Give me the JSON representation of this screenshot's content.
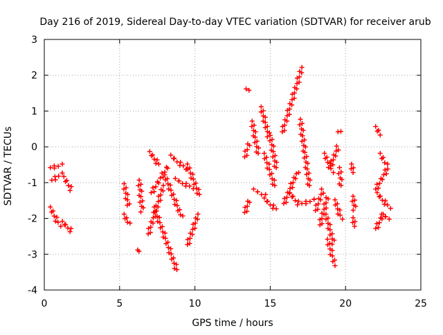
{
  "chart_data": {
    "type": "scatter",
    "title": "Day 216 of 2019, Sidereal Day-to-day VTEC variation (SDTVAR) for receiver arub",
    "xlabel": "GPS time / hours",
    "ylabel": "SDTVAR / TECUs",
    "xlim": [
      0,
      25
    ],
    "ylim": [
      -4,
      3
    ],
    "xticks": [
      0,
      5,
      10,
      15,
      20,
      25
    ],
    "yticks": [
      -4,
      -3,
      -2,
      -1,
      0,
      1,
      2,
      3
    ],
    "xtick_labels": [
      "0",
      "5",
      "10",
      "15",
      "20",
      "25"
    ],
    "ytick_labels": [
      "-4",
      "-3",
      "-2",
      "-1",
      "0",
      "1",
      "2",
      "3"
    ],
    "grid": true,
    "marker": "+",
    "color": "#ff0000",
    "segments": [
      {
        "x": [
          0.4,
          1.1
        ],
        "y": [
          -0.6,
          -0.5
        ]
      },
      {
        "x": [
          0.5,
          1.1
        ],
        "y": [
          -0.95,
          -0.75
        ]
      },
      {
        "x": [
          0.4,
          1.0
        ],
        "y": [
          -1.7,
          -2.2
        ]
      },
      {
        "x": [
          1.2,
          1.8
        ],
        "y": [
          -2.1,
          -2.35
        ]
      },
      {
        "x": [
          1.3,
          1.8
        ],
        "y": [
          -0.85,
          -1.2
        ]
      },
      {
        "x": [
          5.3,
          5.6
        ],
        "y": [
          -1.05,
          -1.65
        ]
      },
      {
        "x": [
          5.3,
          5.6
        ],
        "y": [
          -1.9,
          -2.15
        ]
      },
      {
        "x": [
          6.2,
          6.2
        ],
        "y": [
          -2.9,
          -2.9
        ]
      },
      {
        "x": [
          6.3,
          6.5
        ],
        "y": [
          -0.95,
          -1.8
        ]
      },
      {
        "x": [
          6.9,
          7.9
        ],
        "y": [
          -2.45,
          -1.1
        ]
      },
      {
        "x": [
          7.0,
          7.6
        ],
        "y": [
          -0.15,
          -0.5
        ]
      },
      {
        "x": [
          7.3,
          8.8
        ],
        "y": [
          -1.7,
          -3.45
        ]
      },
      {
        "x": [
          7.1,
          8.2
        ],
        "y": [
          -1.3,
          -0.55
        ]
      },
      {
        "x": [
          8.0,
          9.1
        ],
        "y": [
          -0.8,
          -1.95
        ]
      },
      {
        "x": [
          8.4,
          9.5
        ],
        "y": [
          -0.25,
          -0.65
        ]
      },
      {
        "x": [
          9.5,
          10.3
        ],
        "y": [
          -0.5,
          -1.35
        ]
      },
      {
        "x": [
          9.5,
          10.2
        ],
        "y": [
          -2.75,
          -1.9
        ]
      },
      {
        "x": [
          8.7,
          9.8
        ],
        "y": [
          -0.9,
          -1.15
        ]
      },
      {
        "x": [
          13.3,
          13.6
        ],
        "y": [
          -1.85,
          -1.5
        ]
      },
      {
        "x": [
          13.3,
          13.6
        ],
        "y": [
          -0.3,
          0.1
        ]
      },
      {
        "x": [
          13.4,
          13.5
        ],
        "y": [
          1.6,
          1.6
        ]
      },
      {
        "x": [
          13.8,
          14.2
        ],
        "y": [
          0.7,
          -0.2
        ]
      },
      {
        "x": [
          13.9,
          14.6
        ],
        "y": [
          -1.2,
          -1.35
        ]
      },
      {
        "x": [
          14.4,
          14.9
        ],
        "y": [
          1.1,
          0.3
        ]
      },
      {
        "x": [
          14.6,
          15.3
        ],
        "y": [
          -0.2,
          -1.1
        ]
      },
      {
        "x": [
          14.6,
          15.4
        ],
        "y": [
          -1.45,
          -1.75
        ]
      },
      {
        "x": [
          15.0,
          15.4
        ],
        "y": [
          0.3,
          -0.6
        ]
      },
      {
        "x": [
          15.8,
          17.1
        ],
        "y": [
          0.4,
          2.2
        ]
      },
      {
        "x": [
          15.9,
          16.8
        ],
        "y": [
          -1.6,
          -0.7
        ]
      },
      {
        "x": [
          16.3,
          16.9
        ],
        "y": [
          -1.3,
          -1.6
        ]
      },
      {
        "x": [
          17.0,
          17.6
        ],
        "y": [
          0.75,
          -1.1
        ]
      },
      {
        "x": [
          17.1,
          18.0
        ],
        "y": [
          -1.6,
          -1.45
        ]
      },
      {
        "x": [
          18.0,
          18.5
        ],
        "y": [
          -1.8,
          -1.2
        ]
      },
      {
        "x": [
          18.3,
          18.8
        ],
        "y": [
          -2.2,
          -1.4
        ]
      },
      {
        "x": [
          18.7,
          19.2
        ],
        "y": [
          -1.9,
          -2.7
        ]
      },
      {
        "x": [
          18.8,
          19.3
        ],
        "y": [
          -2.6,
          -3.3
        ]
      },
      {
        "x": [
          18.6,
          19.1
        ],
        "y": [
          -0.2,
          -0.7
        ]
      },
      {
        "x": [
          19.0,
          19.5
        ],
        "y": [
          -0.55,
          0.0
        ]
      },
      {
        "x": [
          19.3,
          19.7
        ],
        "y": [
          -1.5,
          -2.0
        ]
      },
      {
        "x": [
          19.5,
          19.6
        ],
        "y": [
          0.4,
          0.45
        ]
      },
      {
        "x": [
          19.6,
          19.7
        ],
        "y": [
          -0.6,
          -1.1
        ]
      },
      {
        "x": [
          20.4,
          20.5
        ],
        "y": [
          -0.5,
          -0.7
        ]
      },
      {
        "x": [
          20.5,
          20.6
        ],
        "y": [
          -1.4,
          -1.75
        ]
      },
      {
        "x": [
          20.5,
          20.6
        ],
        "y": [
          -2.0,
          -2.2
        ]
      },
      {
        "x": [
          22.0,
          22.3
        ],
        "y": [
          0.55,
          0.35
        ]
      },
      {
        "x": [
          22.0,
          22.8
        ],
        "y": [
          -1.2,
          -0.6
        ]
      },
      {
        "x": [
          22.0,
          22.5
        ],
        "y": [
          -2.3,
          -1.9
        ]
      },
      {
        "x": [
          22.1,
          22.9
        ],
        "y": [
          -1.3,
          -1.7
        ]
      },
      {
        "x": [
          22.3,
          22.7
        ],
        "y": [
          -0.2,
          -0.5
        ]
      },
      {
        "x": [
          22.4,
          22.9
        ],
        "y": [
          -1.9,
          -2.0
        ]
      }
    ]
  }
}
